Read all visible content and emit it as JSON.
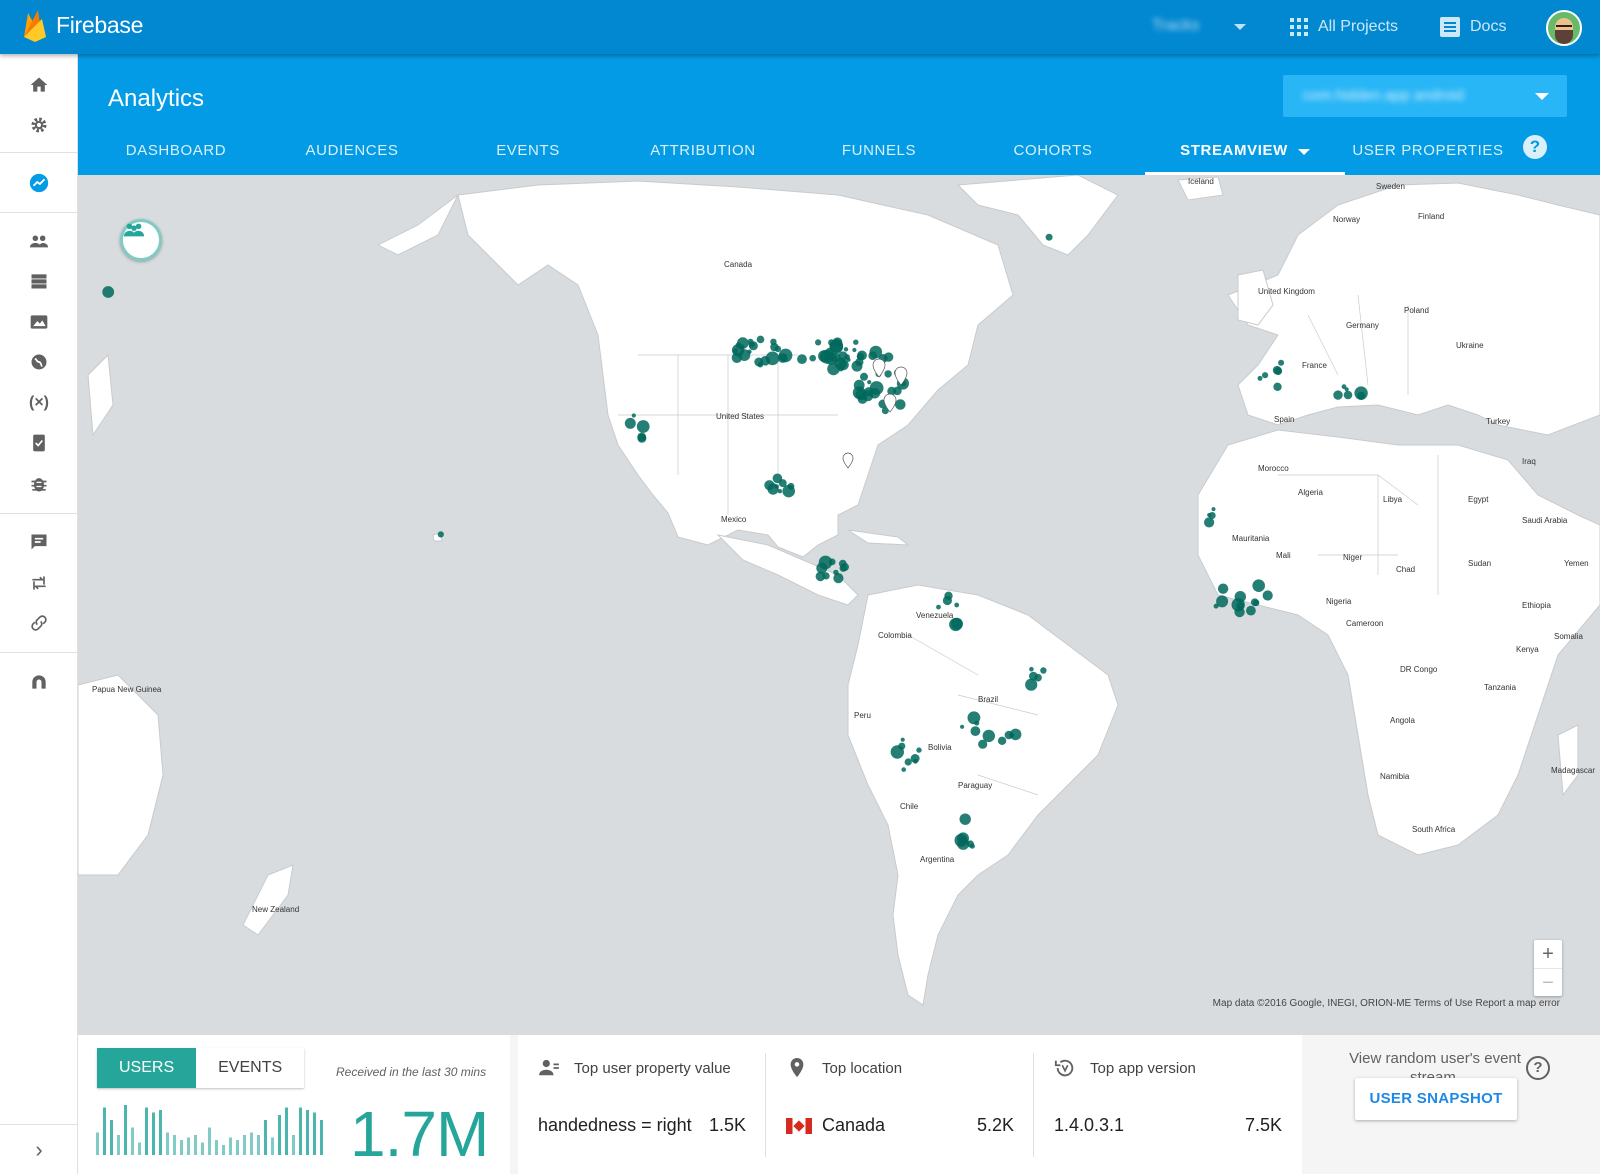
{
  "topbar": {
    "brand": "Firebase",
    "project_name": "Tracks",
    "all_projects": "All Projects",
    "docs": "Docs"
  },
  "header": {
    "title": "Analytics",
    "app_select": "com.hidden.app android"
  },
  "tabs": [
    {
      "label": "DASHBOARD"
    },
    {
      "label": "AUDIENCES"
    },
    {
      "label": "EVENTS"
    },
    {
      "label": "ATTRIBUTION"
    },
    {
      "label": "FUNNELS"
    },
    {
      "label": "COHORTS"
    },
    {
      "label": "STREAMVIEW",
      "active": true
    },
    {
      "label": "USER PROPERTIES"
    }
  ],
  "sidebar": {
    "icons": [
      "home-icon",
      "gear-icon",
      "analytics-icon",
      "users-icon",
      "database-icon",
      "storage-icon",
      "hosting-icon",
      "remote-config-icon",
      "test-lab-icon",
      "crash-icon",
      "notifications-icon",
      "dynamic-links-icon",
      "invites-icon",
      "admob-icon"
    ]
  },
  "map": {
    "attribution": "Map data ©2016 Google, INEGI, ORION-ME   Terms of Use   Report a map error",
    "zoom_in": "+",
    "zoom_out": "−",
    "labels": {
      "canada": "Canada",
      "united_states": "United States",
      "mexico": "Mexico",
      "brazil": "Brazil",
      "argentina": "Argentina",
      "bolivia": "Bolivia",
      "colombia": "Colombia",
      "venezuela": "Venezuela",
      "peru": "Peru",
      "chile": "Chile",
      "algeria": "Algeria",
      "libya": "Libya",
      "egypt": "Egypt",
      "mali": "Mali",
      "niger": "Niger",
      "chad": "Chad",
      "sudan": "Sudan",
      "nigeria": "Nigeria",
      "ethiopia": "Ethiopia",
      "angola": "Angola",
      "namibia": "Namibia",
      "south_africa": "South Africa",
      "iceland": "Iceland",
      "sweden": "Sweden",
      "finland": "Finland",
      "norway": "Norway",
      "uk": "United Kingdom",
      "france": "France",
      "spain": "Spain",
      "poland": "Poland",
      "ukraine": "Ukraine",
      "germany": "Germany",
      "turkey": "Turkey",
      "madagascar": "Madagascar",
      "new_zealand": "New Zealand",
      "papua": "Papua New Guinea",
      "mauritania": "Mauritania",
      "dr_congo": "DR Congo",
      "tanzania": "Tanzania",
      "kenya": "Kenya",
      "somalia": "Somalia",
      "morocco": "Morocco",
      "paraguay": "Paraguay",
      "cameroon": "Cameroon",
      "saudi": "Saudi Arabia",
      "yemen": "Yemen",
      "iraq": "Iraq"
    }
  },
  "bottom": {
    "seg_users": "USERS",
    "seg_events": "EVENTS",
    "received": "Received in the last 30 mins",
    "count": "1.7M",
    "bars": [
      0.45,
      0.95,
      0.7,
      0.4,
      1.0,
      0.55,
      0.25,
      0.95,
      0.85,
      0.9,
      0.45,
      0.4,
      0.3,
      0.35,
      0.4,
      0.25,
      0.55,
      0.3,
      0.2,
      0.35,
      0.3,
      0.4,
      0.45,
      0.4,
      0.7,
      0.35,
      0.8,
      0.95,
      0.4,
      0.95,
      0.9,
      0.85,
      0.7
    ],
    "top_user_property": {
      "title": "Top user property value",
      "value": "handedness = right",
      "count": "1.5K"
    },
    "top_location": {
      "title": "Top location",
      "value": "Canada",
      "count": "5.2K"
    },
    "top_app_version": {
      "title": "Top app version",
      "value": "1.4.0.3.1",
      "count": "7.5K"
    },
    "snapshot_text": "View random user's event stream.",
    "snapshot_button": "USER SNAPSHOT"
  },
  "colors": {
    "firebase_blue": "#0288d1",
    "header_blue": "#039be5",
    "accent_teal": "#26a69a",
    "dot_teal": "#00695c"
  }
}
